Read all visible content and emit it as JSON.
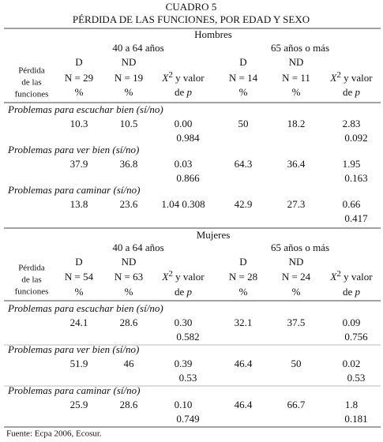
{
  "title": [
    "CUADRO 5",
    "PÉRDIDA DE LAS FUNCIONES, POR EDAD Y SEXO"
  ],
  "sections": [
    {
      "sex": "Hombres",
      "groups": [
        "40 a 64 años",
        "65 años o más"
      ],
      "row_header": [
        "Pérdida",
        "de las",
        "funciones"
      ],
      "columns": [
        [
          "D",
          "N = 29",
          "%"
        ],
        [
          "ND",
          "N = 19",
          "%"
        ],
        [
          "D",
          "N = 14",
          "%"
        ],
        [
          "ND",
          "N = 11",
          "%"
        ]
      ],
      "test_header": {
        "x": "X",
        "sup": "2",
        "rest": " y valor",
        "de": "de ",
        "p": "p"
      },
      "rows": [
        {
          "label": "Problemas para escuchar bien (sí/no)",
          "values": [
            "10.3",
            "10.5",
            "0.00",
            "50",
            "18.2",
            "2.83"
          ],
          "p_values": [
            "0.984",
            "0.092"
          ]
        },
        {
          "label": "Problemas para ver bien (sí/no)",
          "values": [
            "37.9",
            "36.8",
            "0.03",
            "64.3",
            "36.4",
            "1.95"
          ],
          "p_values": [
            "0.866",
            "0.163"
          ]
        },
        {
          "label": "Problemas para caminar (sí/no)",
          "values": [
            "13.8",
            "23.6",
            "1.04 0.308",
            "42.9",
            "27.3",
            "0.66"
          ],
          "p_values": [
            null,
            "0.417"
          ]
        }
      ]
    },
    {
      "sex": "Mujeres",
      "groups": [
        "40 a 64 años",
        "65 años o más"
      ],
      "row_header": [
        "Pérdida",
        "de las",
        "funciones"
      ],
      "columns": [
        [
          "D",
          "N = 54",
          "%"
        ],
        [
          "ND",
          "N = 63",
          "%"
        ],
        [
          "D",
          "N = 28",
          "%"
        ],
        [
          "ND",
          "N = 24",
          "%"
        ]
      ],
      "test_header": {
        "x": "X",
        "sup": "2",
        "rest": " y valor",
        "de": "de ",
        "p": "p"
      },
      "rows": [
        {
          "label": "Problemas para escuchar bien (sí/no)",
          "values": [
            "24.1",
            "28.6",
            "0.30",
            "32.1",
            "37.5",
            "0.09"
          ],
          "p_values": [
            "0.582",
            "0.756"
          ]
        },
        {
          "label": "Problemas para ver bien (sí/no)",
          "values": [
            "51.9",
            "46",
            "0.39",
            "46.4",
            "50",
            "0.02"
          ],
          "p_values": [
            "0.53",
            "0.53"
          ]
        },
        {
          "label": "Problemas para caminar (sí/no)",
          "values": [
            "25.9",
            "28.6",
            "0.10",
            "46.4",
            "66.7",
            "1.8"
          ],
          "p_values": [
            "0.749",
            "0.181"
          ]
        }
      ]
    }
  ],
  "source": "Fuente: Ecpa 2006, Ecosur."
}
